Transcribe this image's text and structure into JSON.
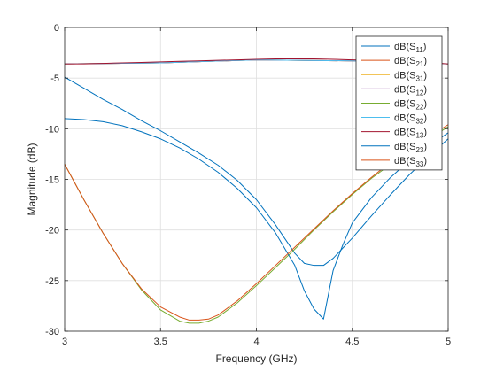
{
  "chart_data": {
    "type": "line",
    "title": "",
    "xlabel": "Frequency (GHz)",
    "ylabel": "Magnitude (dB)",
    "xlim": [
      3,
      5
    ],
    "ylim": [
      -30,
      0
    ],
    "xticks": [
      3,
      3.5,
      4,
      4.5,
      5
    ],
    "xtick_labels": [
      "3",
      "3.5",
      "4",
      "4.5",
      "5"
    ],
    "yticks": [
      0,
      -5,
      -10,
      -15,
      -20,
      -25,
      -30
    ],
    "ytick_labels": [
      "0",
      "-5",
      "-10",
      "-15",
      "-20",
      "-25",
      "-30"
    ],
    "grid": true,
    "legend_position": "top-right",
    "series": [
      {
        "name": "dB(S11)",
        "base": "dB(S",
        "sub": "11",
        "close": ")",
        "color": "#0072BD",
        "x": [
          3.0,
          3.1,
          3.2,
          3.3,
          3.4,
          3.5,
          3.6,
          3.7,
          3.8,
          3.9,
          4.0,
          4.1,
          4.2,
          4.25,
          4.3,
          4.35,
          4.4,
          4.5,
          4.6,
          4.7,
          4.8,
          4.9,
          5.0
        ],
        "y": [
          -4.9,
          -6.0,
          -7.1,
          -8.1,
          -9.2,
          -10.2,
          -11.3,
          -12.4,
          -13.6,
          -15.1,
          -17.0,
          -19.5,
          -22.3,
          -23.3,
          -23.5,
          -23.5,
          -22.8,
          -20.8,
          -18.6,
          -16.5,
          -14.5,
          -12.7,
          -11.0
        ]
      },
      {
        "name": "dB(S21)",
        "base": "dB(S",
        "sub": "21",
        "close": ")",
        "color": "#D95319",
        "x": [
          3.0,
          3.5,
          4.0,
          4.5,
          5.0
        ],
        "y": [
          -3.6,
          -3.5,
          -3.2,
          -3.3,
          -3.6
        ]
      },
      {
        "name": "dB(S31)",
        "base": "dB(S",
        "sub": "31",
        "close": ")",
        "color": "#EDB120",
        "x": [
          3.0,
          3.5,
          4.0,
          4.5,
          5.0
        ],
        "y": [
          -3.6,
          -3.5,
          -3.2,
          -3.3,
          -3.6
        ]
      },
      {
        "name": "dB(S12)",
        "base": "dB(S",
        "sub": "12",
        "close": ")",
        "color": "#7E2F8E",
        "x": [
          3.0,
          3.5,
          4.0,
          4.5,
          5.0
        ],
        "y": [
          -3.6,
          -3.5,
          -3.2,
          -3.3,
          -3.6
        ]
      },
      {
        "name": "dB(S22)",
        "base": "dB(S",
        "sub": "22",
        "close": ")",
        "color": "#77AC30",
        "x": [
          3.0,
          3.1,
          3.2,
          3.3,
          3.4,
          3.5,
          3.6,
          3.65,
          3.7,
          3.75,
          3.8,
          3.9,
          4.0,
          4.1,
          4.2,
          4.3,
          4.4,
          4.5,
          4.6,
          4.7,
          4.8,
          4.9,
          5.0
        ],
        "y": [
          -13.5,
          -17.0,
          -20.3,
          -23.3,
          -25.9,
          -27.9,
          -29.0,
          -29.2,
          -29.2,
          -29.0,
          -28.6,
          -27.2,
          -25.5,
          -23.7,
          -21.9,
          -20.0,
          -18.2,
          -16.5,
          -14.9,
          -13.5,
          -12.2,
          -11.0,
          -9.8
        ]
      },
      {
        "name": "dB(S32)",
        "base": "dB(S",
        "sub": "32",
        "close": ")",
        "color": "#4DBEEE",
        "x": [
          3.0,
          3.5,
          4.0,
          4.5,
          5.0
        ],
        "y": [
          -3.6,
          -3.5,
          -3.2,
          -3.3,
          -3.6
        ]
      },
      {
        "name": "dB(S13)",
        "base": "dB(S",
        "sub": "13",
        "close": ")",
        "color": "#A2142F",
        "x": [
          3.0,
          3.1,
          3.2,
          3.3,
          3.4,
          3.5,
          3.6,
          3.7,
          3.8,
          3.9,
          4.0,
          4.1,
          4.2,
          4.3,
          4.4,
          4.5,
          4.6,
          4.7,
          4.8,
          4.9,
          5.0
        ],
        "y": [
          -3.6,
          -3.6,
          -3.55,
          -3.5,
          -3.45,
          -3.4,
          -3.35,
          -3.3,
          -3.25,
          -3.2,
          -3.15,
          -3.1,
          -3.1,
          -3.1,
          -3.15,
          -3.2,
          -3.25,
          -3.3,
          -3.4,
          -3.5,
          -3.6
        ]
      },
      {
        "name": "dB(S23)",
        "base": "dB(S",
        "sub": "23",
        "close": ")",
        "color": "#0072BD",
        "x": [
          3.0,
          3.1,
          3.2,
          3.3,
          3.4,
          3.5,
          3.6,
          3.7,
          3.8,
          3.9,
          4.0,
          4.1,
          4.2,
          4.25,
          4.3,
          4.35,
          4.4,
          4.45,
          4.5,
          4.6,
          4.7,
          4.8,
          4.9,
          5.0
        ],
        "y": [
          -9.0,
          -9.1,
          -9.3,
          -9.7,
          -10.3,
          -11.0,
          -11.9,
          -13.0,
          -14.3,
          -15.9,
          -17.8,
          -20.3,
          -23.5,
          -26.0,
          -27.8,
          -28.8,
          -24.0,
          -21.5,
          -19.3,
          -16.8,
          -14.8,
          -13.1,
          -11.7,
          -10.4
        ]
      },
      {
        "name": "dB(S33)",
        "base": "dB(S",
        "sub": "33",
        "close": ")",
        "color": "#D95319",
        "x": [
          3.0,
          3.1,
          3.2,
          3.3,
          3.4,
          3.5,
          3.6,
          3.65,
          3.7,
          3.75,
          3.8,
          3.9,
          4.0,
          4.1,
          4.2,
          4.3,
          4.4,
          4.5,
          4.6,
          4.7,
          4.8,
          4.9,
          5.0
        ],
        "y": [
          -13.5,
          -17.0,
          -20.3,
          -23.3,
          -25.8,
          -27.6,
          -28.6,
          -28.9,
          -28.9,
          -28.8,
          -28.4,
          -27.0,
          -25.3,
          -23.5,
          -21.7,
          -19.9,
          -18.1,
          -16.4,
          -14.8,
          -13.3,
          -12.0,
          -10.8,
          -9.6
        ]
      }
    ]
  }
}
